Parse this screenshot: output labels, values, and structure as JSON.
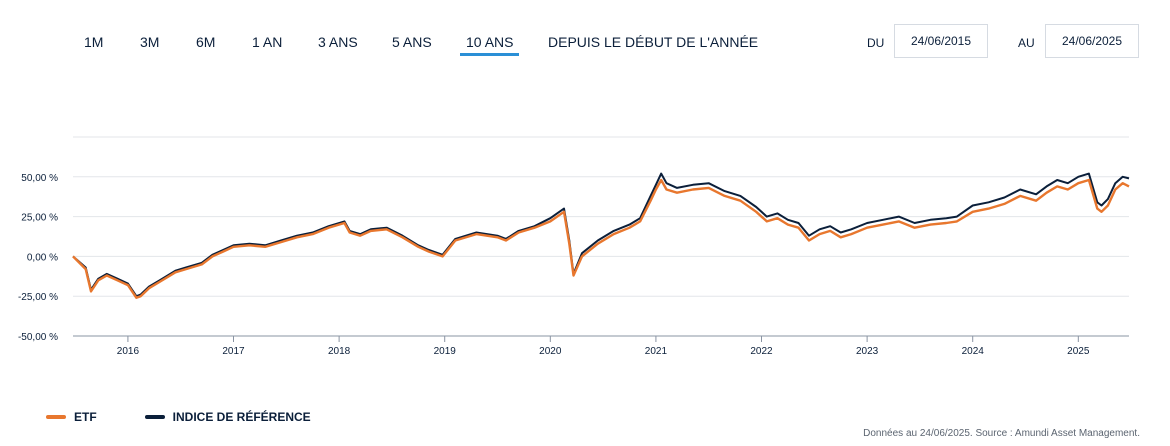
{
  "periods": [
    {
      "label": "1M",
      "active": false
    },
    {
      "label": "3M",
      "active": false
    },
    {
      "label": "6M",
      "active": false
    },
    {
      "label": "1 AN",
      "active": false
    },
    {
      "label": "3 ANS",
      "active": false
    },
    {
      "label": "5 ANS",
      "active": false
    },
    {
      "label": "10 ANS",
      "active": true
    },
    {
      "label": "DEPUIS LE DÉBUT DE L'ANNÉE",
      "active": false
    }
  ],
  "date_range": {
    "from_label": "DU",
    "from_value": "24/06/2015",
    "to_label": "AU",
    "to_value": "24/06/2025"
  },
  "legend": [
    {
      "label": "ETF",
      "color": "#e8772e"
    },
    {
      "label": "INDICE DE RÉFÉRENCE",
      "color": "#0b1f3a"
    }
  ],
  "source_note": "Données au 24/06/2025. Source : Amundi Asset Management.",
  "chart_data": {
    "type": "line",
    "title": "",
    "xlabel": "",
    "ylabel": "",
    "x_range": [
      2015.48,
      2025.48
    ],
    "ylim": [
      -50,
      75
    ],
    "y_ticks": [
      -50,
      -25,
      0,
      25,
      50
    ],
    "y_tick_labels": [
      "-50,00 %",
      "-25,00 %",
      "0,00 %",
      "25,00 %",
      "50,00 %"
    ],
    "x_ticks": [
      2016,
      2017,
      2018,
      2019,
      2020,
      2021,
      2022,
      2023,
      2024,
      2025
    ],
    "x_tick_labels": [
      "2016",
      "2017",
      "2018",
      "2019",
      "2020",
      "2021",
      "2022",
      "2023",
      "2024",
      "2025"
    ],
    "grid": true,
    "legend_position": "bottom-left",
    "x": [
      2015.48,
      2015.6,
      2015.65,
      2015.72,
      2015.8,
      2015.9,
      2016.0,
      2016.08,
      2016.12,
      2016.2,
      2016.3,
      2016.45,
      2016.55,
      2016.7,
      2016.8,
      2016.9,
      2017.0,
      2017.15,
      2017.3,
      2017.45,
      2017.6,
      2017.75,
      2017.9,
      2018.05,
      2018.1,
      2018.2,
      2018.3,
      2018.45,
      2018.6,
      2018.75,
      2018.85,
      2018.98,
      2019.1,
      2019.3,
      2019.5,
      2019.58,
      2019.7,
      2019.85,
      2020.0,
      2020.13,
      2020.18,
      2020.22,
      2020.3,
      2020.45,
      2020.6,
      2020.75,
      2020.85,
      2020.95,
      2021.0,
      2021.05,
      2021.1,
      2021.2,
      2021.35,
      2021.5,
      2021.65,
      2021.8,
      2021.95,
      2022.05,
      2022.15,
      2022.25,
      2022.35,
      2022.45,
      2022.55,
      2022.65,
      2022.75,
      2022.85,
      2023.0,
      2023.15,
      2023.3,
      2023.45,
      2023.6,
      2023.75,
      2023.85,
      2024.0,
      2024.15,
      2024.3,
      2024.45,
      2024.6,
      2024.7,
      2024.8,
      2024.9,
      2025.0,
      2025.1,
      2025.18,
      2025.22,
      2025.28,
      2025.35,
      2025.42,
      2025.48
    ],
    "series": [
      {
        "name": "ETF",
        "color": "#e8772e",
        "values": [
          0,
          -8,
          -22,
          -15,
          -12,
          -15,
          -18,
          -26,
          -25,
          -20,
          -16,
          -10,
          -8,
          -5,
          0,
          3,
          6,
          7,
          6,
          9,
          12,
          14,
          18,
          21,
          15,
          13,
          16,
          17,
          12,
          6,
          3,
          0,
          10,
          14,
          12,
          10,
          15,
          18,
          22,
          28,
          8,
          -12,
          0,
          8,
          14,
          18,
          22,
          35,
          42,
          48,
          42,
          40,
          42,
          43,
          38,
          35,
          28,
          22,
          24,
          20,
          18,
          10,
          14,
          16,
          12,
          14,
          18,
          20,
          22,
          18,
          20,
          21,
          22,
          28,
          30,
          33,
          38,
          35,
          40,
          44,
          42,
          46,
          48,
          30,
          28,
          32,
          42,
          46,
          44
        ]
      },
      {
        "name": "INDICE DE RÉFÉRENCE",
        "color": "#0b1f3a",
        "values": [
          0,
          -7,
          -21,
          -14,
          -11,
          -14,
          -17,
          -25,
          -24,
          -19,
          -15,
          -9,
          -7,
          -4,
          1,
          4,
          7,
          8,
          7,
          10,
          13,
          15,
          19,
          22,
          16,
          14,
          17,
          18,
          13,
          7,
          4,
          1,
          11,
          15,
          13,
          11,
          16,
          19,
          24,
          30,
          10,
          -11,
          2,
          10,
          16,
          20,
          24,
          38,
          45,
          52,
          46,
          43,
          45,
          46,
          41,
          38,
          31,
          25,
          27,
          23,
          21,
          13,
          17,
          19,
          15,
          17,
          21,
          23,
          25,
          21,
          23,
          24,
          25,
          32,
          34,
          37,
          42,
          39,
          44,
          48,
          46,
          50,
          52,
          34,
          32,
          36,
          46,
          50,
          49
        ]
      }
    ]
  }
}
